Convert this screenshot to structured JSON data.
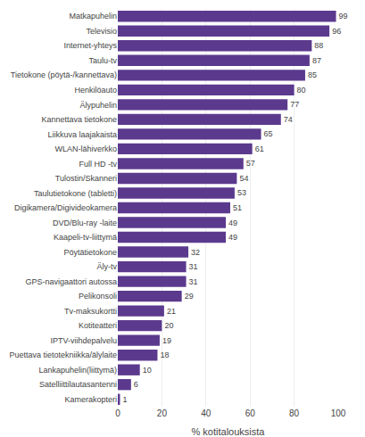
{
  "chart_data": {
    "type": "bar",
    "orientation": "horizontal",
    "categories": [
      "Kamerakopteri",
      "Satelliittilautasantenni",
      "Lankapuhelin(liittymä)",
      "Puettava tietotekniikka/älylaite",
      "IPTV-viihdepalvelu",
      "Kotiteatteri",
      "Tv-maksukortti",
      "Pelikonsoli",
      "GPS-navigaattori autossa",
      "Äly-tv",
      "Pöytätietokone",
      "Kaapeli-tv-liittymä",
      "DVD/Blu-ray -laite",
      "Digikamera/Digivideokamera",
      "Taulutietokone (tabletti)",
      "Tulostin/Skanneri",
      "Full HD -tv",
      "WLAN-lähiverkko",
      "Liikkuva laajakaista",
      "Kannettava tietokone",
      "Älypuhelin",
      "Henkilöauto",
      "Tietokone (pöytä-/kannettava)",
      "Taulu-tv",
      "Internet-yhteys",
      "Televisio",
      "Matkapuhelin"
    ],
    "values": [
      1,
      6,
      10,
      18,
      19,
      20,
      21,
      29,
      31,
      31,
      32,
      49,
      49,
      51,
      53,
      54,
      57,
      61,
      65,
      74,
      77,
      80,
      85,
      87,
      88,
      96,
      99
    ],
    "color": "#5b3a8e",
    "xlabel": "% kotitalouksista",
    "xlim": [
      0,
      100
    ],
    "xticks": [
      0,
      20,
      40,
      60,
      80,
      100
    ],
    "grid": true,
    "data_labels": true
  }
}
